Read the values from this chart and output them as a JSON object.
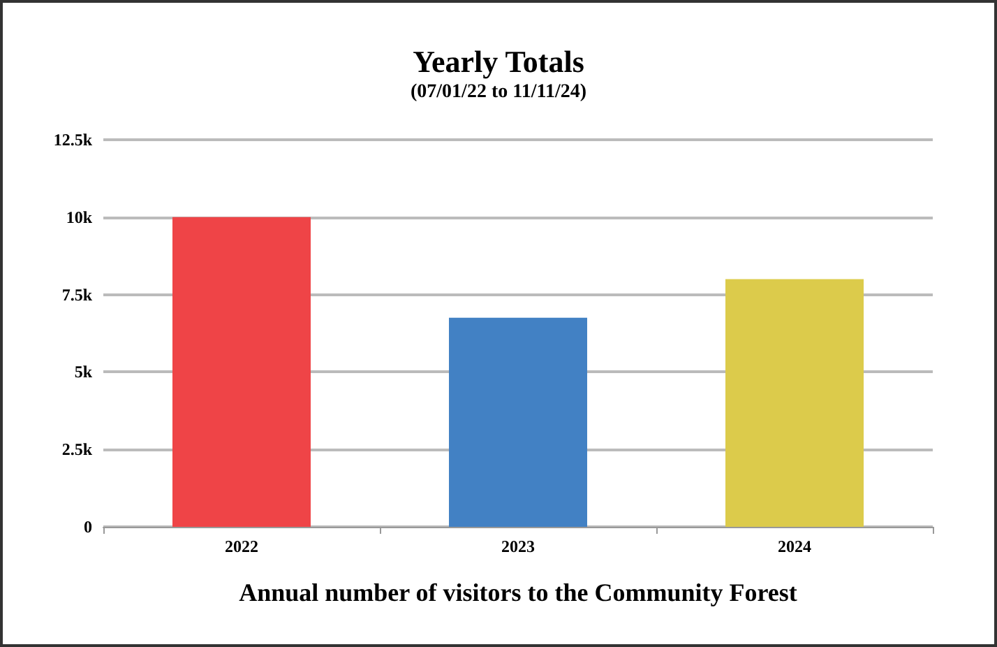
{
  "chart_data": {
    "type": "bar",
    "title": "Yearly Totals",
    "subtitle": "(07/01/22 to 11/11/24)",
    "xlabel": "Annual number of visitors to the Community Forest",
    "categories": [
      "2022",
      "2023",
      "2024"
    ],
    "values": [
      10000,
      6750,
      8000
    ],
    "colors": [
      "#ef4447",
      "#4281c4",
      "#dccb4b"
    ],
    "ylim": [
      0,
      12500
    ],
    "yticks": [
      {
        "value": 0,
        "label": "0"
      },
      {
        "value": 2500,
        "label": "2.5k"
      },
      {
        "value": 5000,
        "label": "5k"
      },
      {
        "value": 7500,
        "label": "7.5k"
      },
      {
        "value": 10000,
        "label": "10k"
      },
      {
        "value": 12500,
        "label": "12.5k"
      }
    ],
    "grid": "y"
  }
}
